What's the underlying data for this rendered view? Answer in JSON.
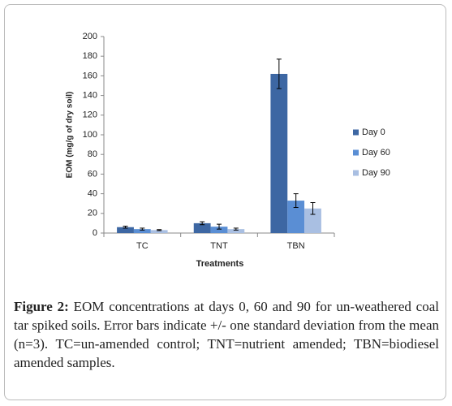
{
  "chart_data": {
    "type": "bar",
    "y_label": "EOM (mg/g of dry soil)",
    "x_label": "Treatments",
    "categories": [
      "TC",
      "TNT",
      "TBN"
    ],
    "series": [
      {
        "name": "Day 0",
        "color": "#3d67a3",
        "values": [
          6,
          10,
          162
        ],
        "errors": [
          1,
          1.5,
          15
        ]
      },
      {
        "name": "Day 60",
        "color": "#5a8ed4",
        "values": [
          4,
          6.5,
          33
        ],
        "errors": [
          1,
          2.5,
          7
        ]
      },
      {
        "name": "Day 90",
        "color": "#a9bfe2",
        "values": [
          3,
          4,
          25
        ],
        "errors": [
          0.5,
          1,
          6
        ]
      }
    ],
    "ylim": [
      0,
      200
    ],
    "yticks": [
      0,
      20,
      40,
      60,
      80,
      100,
      120,
      140,
      160,
      180,
      200
    ],
    "grid": false,
    "legend": "right"
  },
  "caption": {
    "label": "Figure 2:",
    "text": "EOM concentrations at days 0, 60 and 90 for un-weathered coal tar spiked soils. Error bars indicate +/- one standard deviation from the mean (n=3). TC=un-amended control; TNT=nutrient amended; TBN=biodiesel amended samples."
  }
}
